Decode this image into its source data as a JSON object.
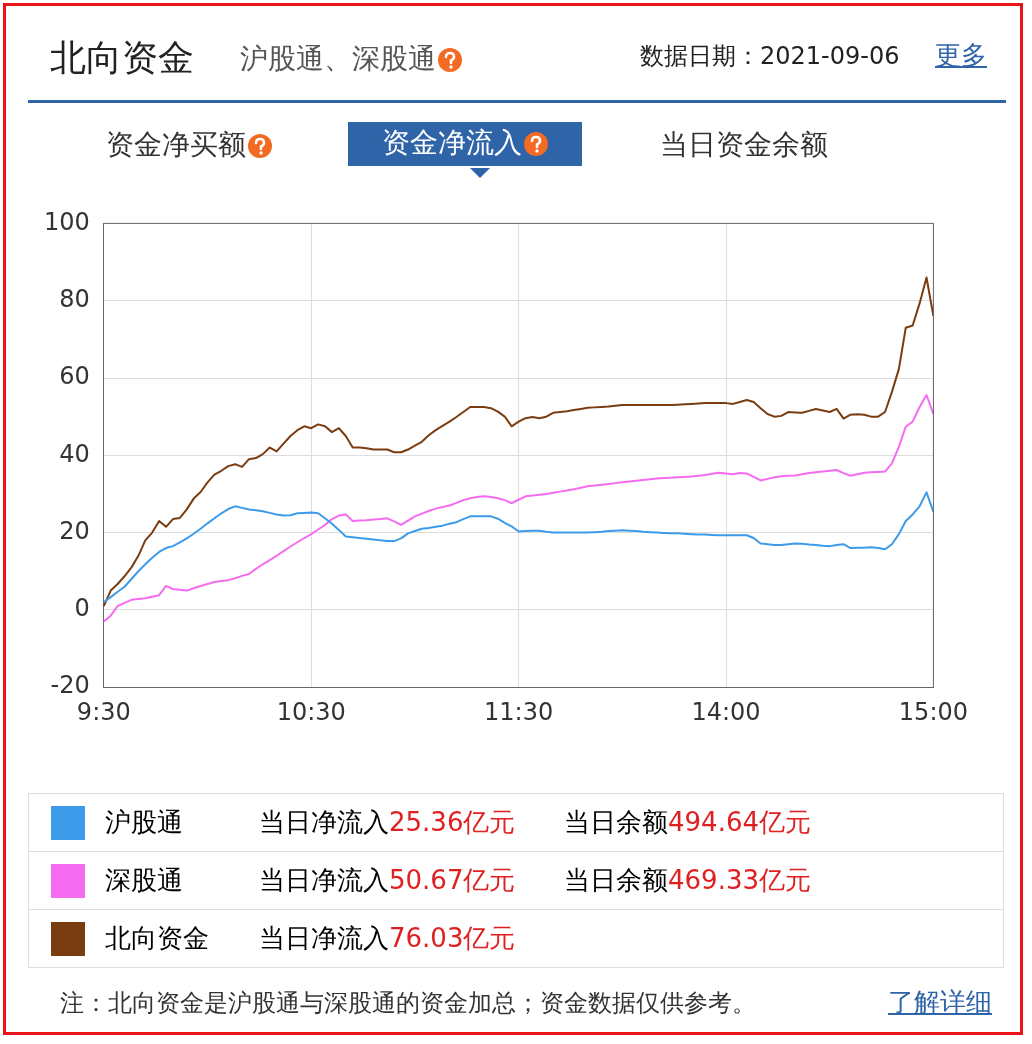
{
  "chart_data": {
    "type": "line",
    "title": "北向资金",
    "subtitle": "沪股通、深股通",
    "annotations": [
      "数据日期：2021-09-06",
      "更多",
      "资金净买额",
      "资金净流入",
      "当日资金余额",
      "当日净流入25.36亿元",
      "当日余额494.64亿元",
      "当日净流入50.67亿元",
      "当日余额469.33亿元",
      "当日净流入76.03亿元",
      "注：北向资金是沪股通与深股通的资金加总；资金数据仅供参考。",
      "了解详细"
    ],
    "categories": [
      "9:30",
      null,
      null,
      null,
      null,
      null,
      null,
      null,
      null,
      null,
      null,
      null,
      null,
      null,
      null,
      null,
      null,
      null,
      null,
      null,
      null,
      null,
      null,
      null,
      null,
      null,
      null,
      null,
      null,
      null,
      "10:30",
      null,
      null,
      null,
      null,
      null,
      null,
      null,
      null,
      null,
      null,
      null,
      null,
      null,
      null,
      null,
      null,
      null,
      null,
      null,
      null,
      null,
      null,
      null,
      null,
      null,
      null,
      null,
      null,
      null,
      "11:30",
      null,
      null,
      null,
      null,
      null,
      null,
      null,
      null,
      null,
      null,
      null,
      null,
      null,
      null,
      null,
      null,
      null,
      null,
      null,
      null,
      null,
      null,
      null,
      null,
      null,
      null,
      null,
      null,
      null,
      "14:00",
      null,
      null,
      null,
      null,
      null,
      null,
      null,
      null,
      null,
      null,
      null,
      null,
      null,
      null,
      null,
      null,
      null,
      null,
      null,
      null,
      null,
      null,
      null,
      null,
      null,
      null,
      null,
      null,
      null,
      "15:00"
    ],
    "ylim": [
      -20,
      100
    ],
    "yticks": [
      -20,
      0,
      20,
      40,
      60,
      80,
      100
    ],
    "grid": true,
    "legend": "bottom",
    "marker": "none",
    "line_style": "solid",
    "series": [
      {
        "name": "沪股通",
        "color": "#3d9be9",
        "values": [
          2,
          3.3,
          4.7,
          6,
          8,
          10,
          11.8,
          13.5,
          15,
          16,
          16.5,
          17.5,
          18.5,
          19.7,
          21,
          22.4,
          23.7,
          25,
          26.1,
          26.8,
          26.4,
          26,
          25.8,
          25.5,
          25.1,
          24.7,
          24.4,
          24.5,
          25,
          25.1,
          25.2,
          25,
          23.7,
          22.3,
          20.7,
          19,
          18.8,
          18.6,
          18.4,
          18.2,
          18,
          17.8,
          17.8,
          18.5,
          19.8,
          20.4,
          21,
          21.2,
          21.5,
          21.8,
          22.3,
          22.7,
          23.5,
          24.2,
          24.2,
          24.2,
          24.2,
          23.6,
          22.5,
          21.6,
          20.3,
          20.4,
          20.5,
          20.5,
          20.2,
          20,
          20,
          20,
          20,
          20,
          20,
          20.1,
          20.2,
          20.4,
          20.5,
          20.6,
          20.5,
          20.4,
          20.2,
          20.1,
          20,
          19.9,
          19.8,
          19.8,
          19.7,
          19.6,
          19.5,
          19.5,
          19.4,
          19.3,
          19.3,
          19.3,
          19.3,
          19.3,
          18.6,
          17.2,
          17,
          16.8,
          16.8,
          17,
          17.2,
          17.1,
          16.9,
          16.8,
          16.6,
          16.5,
          16.8,
          17,
          16,
          16.1,
          16.1,
          16.2,
          16,
          15.7,
          17,
          19.6,
          23,
          24.7,
          26.8,
          30.4,
          25.36
        ]
      },
      {
        "name": "深股通",
        "color": "#f56cf0",
        "values": [
          -3,
          -1.5,
          1,
          1.8,
          2.6,
          2.8,
          3,
          3.4,
          3.8,
          6.2,
          5.4,
          5.2,
          5,
          5.6,
          6.2,
          6.7,
          7.2,
          7.5,
          7.7,
          8.2,
          8.8,
          9.3,
          10.6,
          11.8,
          12.9,
          14,
          15.2,
          16.4,
          17.5,
          18.6,
          19.6,
          20.8,
          22,
          23.5,
          24.4,
          24.7,
          23,
          23.1,
          23.2,
          23.4,
          23.5,
          23.7,
          22.9,
          22,
          23.1,
          24.2,
          24.9,
          25.6,
          26.2,
          26.6,
          27,
          27.7,
          28.4,
          28.9,
          29.2,
          29.4,
          29.2,
          28.9,
          28.4,
          27.6,
          28.5,
          29.4,
          29.6,
          29.8,
          30,
          30.3,
          30.6,
          30.9,
          31.2,
          31.6,
          32,
          32.2,
          32.4,
          32.6,
          32.8,
          33,
          33.2,
          33.4,
          33.6,
          33.8,
          34,
          34.1,
          34.2,
          34.3,
          34.4,
          34.5,
          34.7,
          34.9,
          35.2,
          35.5,
          35.3,
          35.1,
          35.4,
          35.3,
          34.4,
          33.5,
          33.9,
          34.3,
          34.6,
          34.7,
          34.8,
          35.1,
          35.4,
          35.6,
          35.8,
          36,
          36.2,
          35.4,
          34.7,
          35.1,
          35.5,
          35.6,
          35.7,
          35.8,
          37.9,
          42.2,
          47.4,
          48.7,
          52.5,
          55.6,
          50.67
        ]
      },
      {
        "name": "北向资金",
        "color": "#7a3d12",
        "values": [
          1,
          5,
          6.7,
          8.7,
          11,
          14,
          18,
          20,
          23,
          21.5,
          23.5,
          23.8,
          26,
          28.8,
          30.5,
          33,
          35,
          36,
          37.2,
          37.7,
          37,
          39,
          39.3,
          40.3,
          42,
          41,
          43,
          45,
          46.5,
          47.5,
          47,
          48,
          47.5,
          46,
          47,
          45,
          42,
          42,
          41.8,
          41.5,
          41.5,
          41.5,
          40.8,
          40.8,
          41.5,
          42.5,
          43.5,
          45.2,
          46.5,
          47.6,
          48.7,
          49.9,
          51.2,
          52.5,
          52.5,
          52.5,
          52.2,
          51.3,
          50,
          47.5,
          48.7,
          49.6,
          49.9,
          49.6,
          50,
          51,
          51.2,
          51.4,
          51.7,
          52,
          52.3,
          52.4,
          52.5,
          52.6,
          52.8,
          53,
          53,
          53,
          53,
          53,
          53,
          53,
          53,
          53.1,
          53.2,
          53.3,
          53.4,
          53.5,
          53.5,
          53.5,
          53.5,
          53.3,
          53.8,
          54.3,
          53.8,
          52.2,
          50.7,
          50,
          50.2,
          51.2,
          51.1,
          51,
          51.5,
          52,
          51.6,
          51.2,
          52,
          49.5,
          50.5,
          50.6,
          50.5,
          50,
          50,
          51.2,
          56.4,
          62.3,
          73,
          73.6,
          79.3,
          86,
          76.03
        ]
      }
    ]
  }
}
